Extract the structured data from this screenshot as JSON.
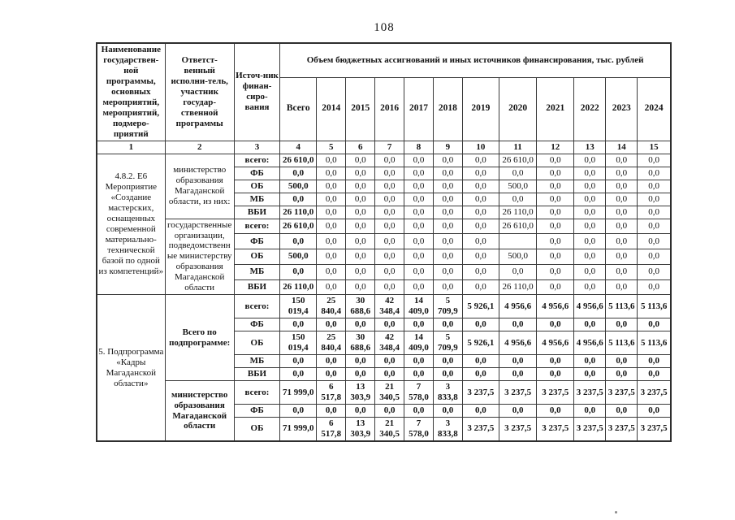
{
  "page": {
    "number": "108"
  },
  "table": {
    "header": {
      "col1": "Наименование государствен-ной программы, основных мероприятий, мероприятий, подмеро-приятий",
      "col2": "Ответст-венный исполни-тель, участник государ-ственной программы",
      "col3": "Источ-ник финан-сиро-вания",
      "span_title": "Объем бюджетных ассигнований и иных источников финансирования, тыс. рублей",
      "year_cols": [
        "Всего",
        "2014",
        "2015",
        "2016",
        "2017",
        "2018",
        "2019",
        "2020",
        "2021",
        "2022",
        "2023",
        "2024"
      ],
      "index_row": [
        "1",
        "2",
        "3",
        "4",
        "5",
        "6",
        "7",
        "8",
        "9",
        "10",
        "11",
        "12",
        "13",
        "14",
        "15"
      ]
    },
    "groups": [
      {
        "program": "4.8.2. Е6 Мероприятие «Создание мастерских, оснащенных современной материально-технической базой по одной из компетенций»",
        "executors": [
          {
            "name": "министерство образования Магаданской области, из них:",
            "emphasis": false,
            "values_bold": false,
            "rows": [
              {
                "source": "всего:",
                "values": [
                  "26 610,0",
                  "0,0",
                  "0,0",
                  "0,0",
                  "0,0",
                  "0,0",
                  "0,0",
                  "26 610,0",
                  "0,0",
                  "0,0",
                  "0,0",
                  "0,0"
                ]
              },
              {
                "source": "ФБ",
                "values": [
                  "0,0",
                  "0,0",
                  "0,0",
                  "0,0",
                  "0,0",
                  "0,0",
                  "0,0",
                  "0,0",
                  "0,0",
                  "0,0",
                  "0,0",
                  "0,0"
                ]
              },
              {
                "source": "ОБ",
                "values": [
                  "500,0",
                  "0,0",
                  "0,0",
                  "0,0",
                  "0,0",
                  "0,0",
                  "0,0",
                  "500,0",
                  "0,0",
                  "0,0",
                  "0,0",
                  "0,0"
                ]
              },
              {
                "source": "МБ",
                "values": [
                  "0,0",
                  "0,0",
                  "0,0",
                  "0,0",
                  "0,0",
                  "0,0",
                  "0,0",
                  "0,0",
                  "0,0",
                  "0,0",
                  "0,0",
                  "0,0"
                ]
              },
              {
                "source": "ВБИ",
                "values": [
                  "26 110,0",
                  "0,0",
                  "0,0",
                  "0,0",
                  "0,0",
                  "0,0",
                  "0,0",
                  "26 110,0",
                  "0,0",
                  "0,0",
                  "0,0",
                  "0,0"
                ]
              }
            ]
          },
          {
            "name": "государственные организации, подведомственные министерству образования Магаданской области",
            "emphasis": false,
            "values_bold": false,
            "rows": [
              {
                "source": "всего:",
                "values": [
                  "26 610,0",
                  "0,0",
                  "0,0",
                  "0,0",
                  "0,0",
                  "0,0",
                  "0,0",
                  "26 610,0",
                  "0,0",
                  "0,0",
                  "0,0",
                  "0,0"
                ]
              },
              {
                "source": "ФБ",
                "values": [
                  "0,0",
                  "0,0",
                  "0,0",
                  "0,0",
                  "0,0",
                  "0,0",
                  "0,0",
                  "",
                  "0,0",
                  "0,0",
                  "0,0",
                  "0,0"
                ]
              },
              {
                "source": "ОБ",
                "values": [
                  "500,0",
                  "0,0",
                  "0,0",
                  "0,0",
                  "0,0",
                  "0,0",
                  "0,0",
                  "500,0",
                  "0,0",
                  "0,0",
                  "0,0",
                  "0,0"
                ]
              },
              {
                "source": "МБ",
                "values": [
                  "0,0",
                  "0,0",
                  "0,0",
                  "0,0",
                  "0,0",
                  "0,0",
                  "0,0",
                  "0,0",
                  "0,0",
                  "0,0",
                  "0,0",
                  "0,0"
                ]
              },
              {
                "source": "ВБИ",
                "values": [
                  "26 110,0",
                  "0,0",
                  "0,0",
                  "0,0",
                  "0,0",
                  "0,0",
                  "0,0",
                  "26 110,0",
                  "0,0",
                  "0,0",
                  "0,0",
                  "0,0"
                ]
              }
            ]
          }
        ]
      },
      {
        "program": "5. Подпрограмма «Кадры Магаданской области»",
        "executors": [
          {
            "name": "Всего по подпрограмме:",
            "emphasis": true,
            "values_bold": true,
            "rows": [
              {
                "source": "всего:",
                "values": [
                  "150 019,4",
                  "25 840,4",
                  "30 688,6",
                  "42 348,4",
                  "14 409,0",
                  "5 709,9",
                  "5 926,1",
                  "4 956,6",
                  "4 956,6",
                  "4 956,6",
                  "5 113,6",
                  "5 113,6"
                ]
              },
              {
                "source": "ФБ",
                "values": [
                  "0,0",
                  "0,0",
                  "0,0",
                  "0,0",
                  "0,0",
                  "0,0",
                  "0,0",
                  "0,0",
                  "0,0",
                  "0,0",
                  "0,0",
                  "0,0"
                ]
              },
              {
                "source": "ОБ",
                "values": [
                  "150 019,4",
                  "25 840,4",
                  "30 688,6",
                  "42 348,4",
                  "14 409,0",
                  "5 709,9",
                  "5 926,1",
                  "4 956,6",
                  "4 956,6",
                  "4 956,6",
                  "5 113,6",
                  "5 113,6"
                ]
              },
              {
                "source": "МБ",
                "values": [
                  "0,0",
                  "0,0",
                  "0,0",
                  "0,0",
                  "0,0",
                  "0,0",
                  "0,0",
                  "0,0",
                  "0,0",
                  "0,0",
                  "0,0",
                  "0,0"
                ]
              },
              {
                "source": "ВБИ",
                "values": [
                  "0,0",
                  "0,0",
                  "0,0",
                  "0,0",
                  "0,0",
                  "0,0",
                  "0,0",
                  "0,0",
                  "0,0",
                  "0,0",
                  "0,0",
                  "0,0"
                ]
              }
            ]
          },
          {
            "name": "министерство образования Магаданской области",
            "emphasis": true,
            "values_bold": true,
            "rows": [
              {
                "source": "всего:",
                "values": [
                  "71 999,0",
                  "6 517,8",
                  "13 303,9",
                  "21 340,5",
                  "7 578,0",
                  "3 833,8",
                  "3 237,5",
                  "3 237,5",
                  "3 237,5",
                  "3 237,5",
                  "3 237,5",
                  "3 237,5"
                ]
              },
              {
                "source": "ФБ",
                "values": [
                  "0,0",
                  "0,0",
                  "0,0",
                  "0,0",
                  "0,0",
                  "0,0",
                  "0,0",
                  "0,0",
                  "0,0",
                  "0,0",
                  "0,0",
                  "0,0"
                ]
              },
              {
                "source": "ОБ",
                "values": [
                  "71 999,0",
                  "6 517,8",
                  "13 303,9",
                  "21 340,5",
                  "7 578,0",
                  "3 833,8",
                  "3 237,5",
                  "3 237,5",
                  "3 237,5",
                  "3 237,5",
                  "3 237,5",
                  "3 237,5"
                ]
              }
            ]
          }
        ]
      }
    ]
  }
}
